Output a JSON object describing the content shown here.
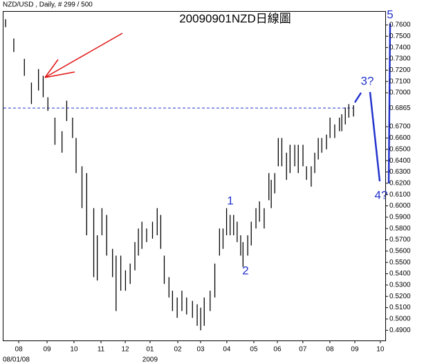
{
  "chart_data": {
    "type": "hilo",
    "header": "NZD/USD , Daily, # 299 / 500",
    "title": "20090901NZD日線圖",
    "color": "#000000",
    "x": [
      0,
      7,
      16,
      22,
      28,
      32,
      36,
      42,
      48,
      52,
      57,
      60,
      65,
      69,
      75,
      78,
      82,
      86,
      91,
      94,
      98,
      102,
      106,
      110,
      113,
      116,
      120,
      125,
      129,
      132,
      135,
      139,
      142,
      146,
      150,
      154,
      159,
      163,
      166,
      169,
      174,
      178,
      182,
      185,
      188,
      191,
      194,
      197,
      200,
      202,
      206,
      209,
      213,
      216,
      220,
      224,
      226,
      229,
      232,
      235,
      239,
      242,
      246,
      249,
      253,
      256,
      260,
      263,
      266,
      269,
      273,
      276,
      280,
      284,
      286,
      289,
      292,
      296
    ],
    "high": [
      0.765,
      0.748,
      0.73,
      0.709,
      0.721,
      0.715,
      0.696,
      0.678,
      0.666,
      0.693,
      0.678,
      0.66,
      0.635,
      0.629,
      0.598,
      0.574,
      0.598,
      0.592,
      0.562,
      0.556,
      0.556,
      0.543,
      0.549,
      0.568,
      0.58,
      0.586,
      0.58,
      0.586,
      0.598,
      0.592,
      0.556,
      0.537,
      0.525,
      0.519,
      0.525,
      0.519,
      0.516,
      0.513,
      0.51,
      0.519,
      0.525,
      0.549,
      0.58,
      0.58,
      0.598,
      0.592,
      0.592,
      0.586,
      0.574,
      0.568,
      0.574,
      0.586,
      0.598,
      0.604,
      0.598,
      0.629,
      0.623,
      0.629,
      0.66,
      0.66,
      0.647,
      0.654,
      0.654,
      0.654,
      0.654,
      0.635,
      0.635,
      0.647,
      0.66,
      0.66,
      0.663,
      0.678,
      0.672,
      0.678,
      0.681,
      0.687,
      0.69,
      0.689
    ],
    "low": [
      0.758,
      0.736,
      0.715,
      0.69,
      0.702,
      0.696,
      0.684,
      0.654,
      0.647,
      0.675,
      0.66,
      0.629,
      0.598,
      0.574,
      0.537,
      0.534,
      0.574,
      0.556,
      0.537,
      0.507,
      0.525,
      0.525,
      0.531,
      0.543,
      0.556,
      0.562,
      0.568,
      0.571,
      0.574,
      0.562,
      0.531,
      0.519,
      0.507,
      0.501,
      0.507,
      0.504,
      0.501,
      0.494,
      0.49,
      0.494,
      0.507,
      0.519,
      0.556,
      0.562,
      0.574,
      0.574,
      0.574,
      0.568,
      0.556,
      0.546,
      0.556,
      0.565,
      0.58,
      0.586,
      0.58,
      0.605,
      0.598,
      0.611,
      0.635,
      0.635,
      0.623,
      0.629,
      0.635,
      0.629,
      0.635,
      0.623,
      0.617,
      0.629,
      0.641,
      0.647,
      0.65,
      0.66,
      0.66,
      0.666,
      0.666,
      0.672,
      0.678,
      0.679
    ],
    "xlim": [
      -1.8,
      323
    ],
    "xticks": [
      {
        "value": 11.2,
        "label": "08"
      },
      {
        "value": 35.3,
        "label": "09"
      },
      {
        "value": 58.2,
        "label": "10"
      },
      {
        "value": 81.2,
        "label": "11"
      },
      {
        "value": 101.8,
        "label": "12"
      },
      {
        "value": 122.9,
        "label": "01"
      },
      {
        "value": 146.5,
        "label": "02"
      },
      {
        "value": 165.9,
        "label": "03"
      },
      {
        "value": 188.2,
        "label": "04"
      },
      {
        "value": 211.2,
        "label": "05"
      },
      {
        "value": 231.2,
        "label": "06"
      },
      {
        "value": 252.9,
        "label": "07"
      },
      {
        "value": 275.9,
        "label": "08"
      },
      {
        "value": 297.1,
        "label": "09"
      },
      {
        "value": 318.8,
        "label": "10"
      }
    ],
    "start_date_label": "08/01/08",
    "year_label": "2009",
    "ylim": [
      0.481,
      0.771
    ],
    "yticks": [
      {
        "value": 0.76,
        "label": "0.7600"
      },
      {
        "value": 0.75,
        "label": "0.7500"
      },
      {
        "value": 0.74,
        "label": "0.7400"
      },
      {
        "value": 0.73,
        "label": "0.7300"
      },
      {
        "value": 0.72,
        "label": "0.7200"
      },
      {
        "value": 0.71,
        "label": "0.7100"
      },
      {
        "value": 0.7,
        "label": "0.7000"
      },
      {
        "value": 0.67,
        "label": "0.6700"
      },
      {
        "value": 0.66,
        "label": "0.6600"
      },
      {
        "value": 0.65,
        "label": "0.6500"
      },
      {
        "value": 0.64,
        "label": "0.6400"
      },
      {
        "value": 0.63,
        "label": "0.6300"
      },
      {
        "value": 0.62,
        "label": "0.6200"
      },
      {
        "value": 0.61,
        "label": "0.6100"
      },
      {
        "value": 0.6,
        "label": "0.6000"
      },
      {
        "value": 0.59,
        "label": "0.5900"
      },
      {
        "value": 0.58,
        "label": "0.5800"
      },
      {
        "value": 0.57,
        "label": "0.5700"
      },
      {
        "value": 0.56,
        "label": "0.5600"
      },
      {
        "value": 0.55,
        "label": "0.5500"
      },
      {
        "value": 0.54,
        "label": "0.5400"
      },
      {
        "value": 0.53,
        "label": "0.5300"
      },
      {
        "value": 0.52,
        "label": "0.5200"
      },
      {
        "value": 0.51,
        "label": "0.5100"
      },
      {
        "value": 0.5,
        "label": "0.5000"
      },
      {
        "value": 0.49,
        "label": "0.4900"
      }
    ],
    "last_price": {
      "value": 0.6865,
      "label": "0.6865"
    },
    "last_price_color": "#2233cc",
    "wave_labels": [
      "1",
      "2",
      "3?",
      "4?",
      "5"
    ]
  }
}
